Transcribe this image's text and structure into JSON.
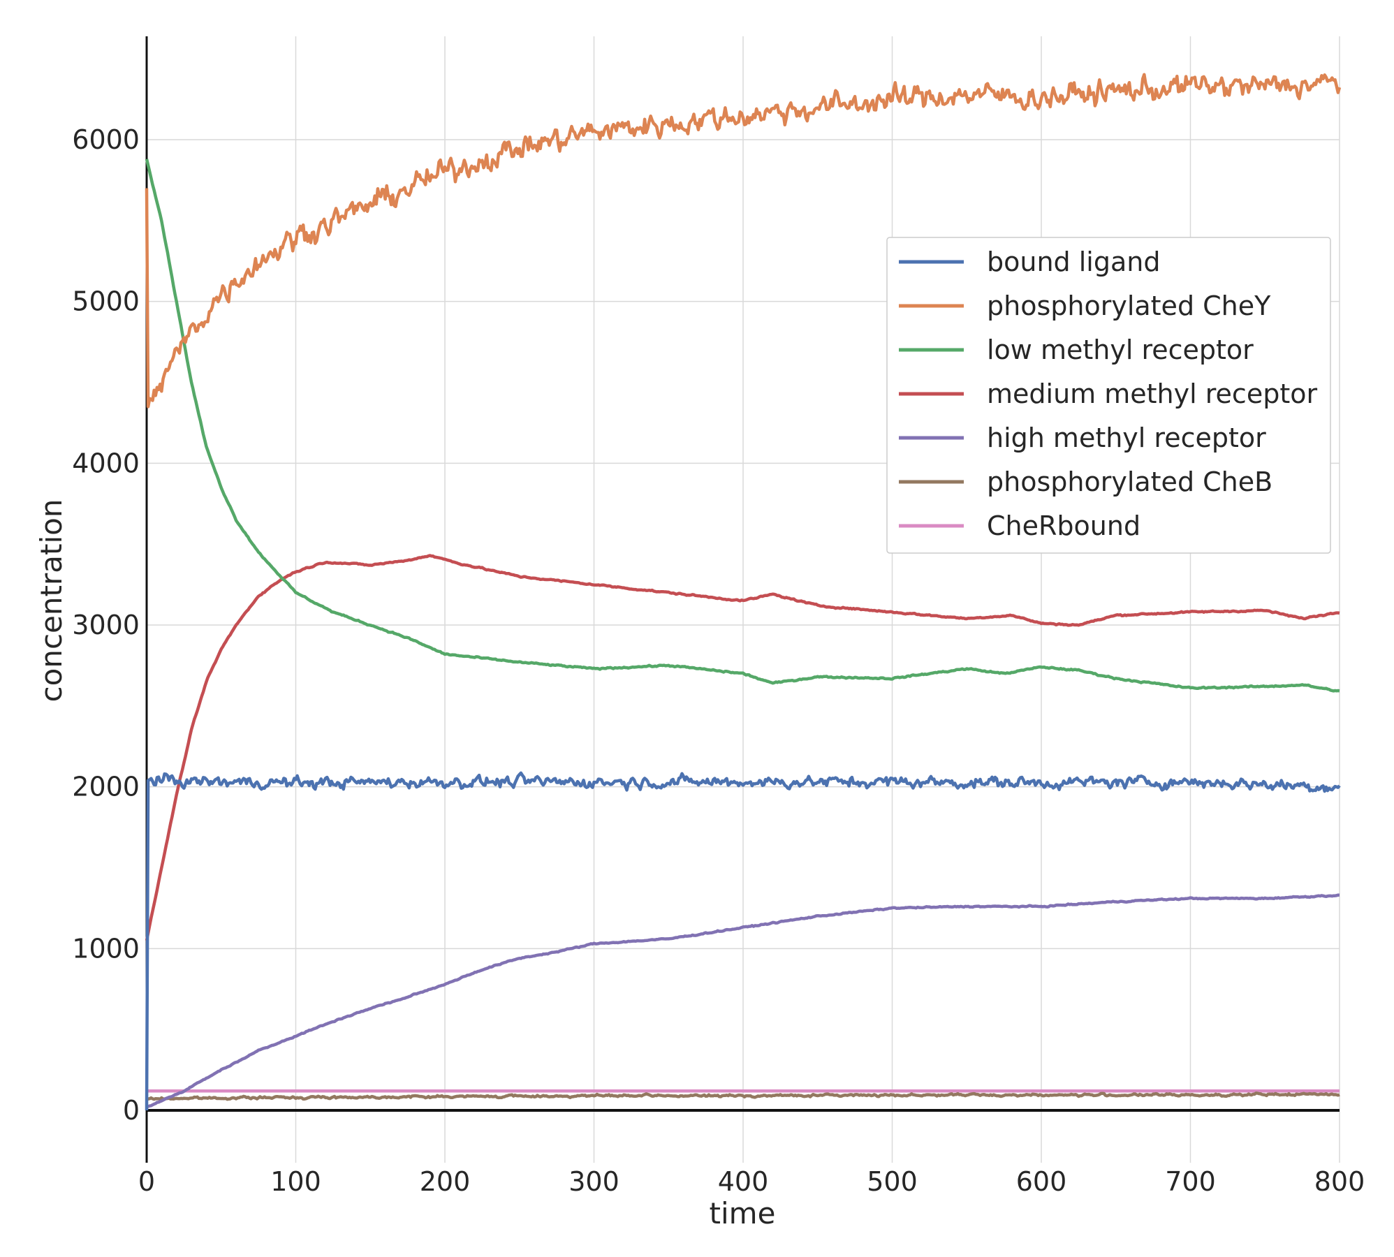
{
  "chart_data": {
    "type": "line",
    "title": "",
    "xlabel": "time",
    "ylabel": "concentration",
    "xlim": [
      0,
      800
    ],
    "ylim": [
      -300,
      6650
    ],
    "xticks": [
      "0",
      "100",
      "200",
      "300",
      "400",
      "500",
      "600",
      "700",
      "800"
    ],
    "yticks": [
      "0",
      "1000",
      "2000",
      "3000",
      "4000",
      "5000",
      "6000"
    ],
    "grid": true,
    "legend_position": "upper-right",
    "noise_seed": 7,
    "series": [
      {
        "name": "bound ligand",
        "color": "#4c72b0",
        "noise": 45,
        "points": [
          [
            0,
            0
          ],
          [
            1,
            2040
          ],
          [
            50,
            2030
          ],
          [
            100,
            2025
          ],
          [
            200,
            2030
          ],
          [
            300,
            2030
          ],
          [
            400,
            2030
          ],
          [
            500,
            2030
          ],
          [
            600,
            2025
          ],
          [
            700,
            2030
          ],
          [
            800,
            2000
          ]
        ]
      },
      {
        "name": "phosphorylated CheY",
        "color": "#dd8452",
        "noise": 95,
        "points": [
          [
            0,
            5700
          ],
          [
            1,
            4350
          ],
          [
            10,
            4500
          ],
          [
            25,
            4750
          ],
          [
            50,
            5050
          ],
          [
            75,
            5250
          ],
          [
            100,
            5400
          ],
          [
            150,
            5600
          ],
          [
            200,
            5800
          ],
          [
            250,
            5950
          ],
          [
            300,
            6050
          ],
          [
            350,
            6100
          ],
          [
            400,
            6150
          ],
          [
            450,
            6200
          ],
          [
            500,
            6250
          ],
          [
            550,
            6280
          ],
          [
            600,
            6260
          ],
          [
            650,
            6300
          ],
          [
            700,
            6330
          ],
          [
            750,
            6330
          ],
          [
            800,
            6350
          ]
        ]
      },
      {
        "name": "low methyl receptor",
        "color": "#55a868",
        "noise": 6,
        "points": [
          [
            0,
            5880
          ],
          [
            10,
            5500
          ],
          [
            20,
            5000
          ],
          [
            30,
            4500
          ],
          [
            40,
            4100
          ],
          [
            50,
            3850
          ],
          [
            60,
            3650
          ],
          [
            75,
            3450
          ],
          [
            100,
            3200
          ],
          [
            125,
            3080
          ],
          [
            150,
            3000
          ],
          [
            175,
            2920
          ],
          [
            200,
            2820
          ],
          [
            250,
            2770
          ],
          [
            300,
            2730
          ],
          [
            350,
            2750
          ],
          [
            400,
            2700
          ],
          [
            420,
            2640
          ],
          [
            450,
            2680
          ],
          [
            500,
            2670
          ],
          [
            550,
            2730
          ],
          [
            575,
            2700
          ],
          [
            600,
            2740
          ],
          [
            625,
            2720
          ],
          [
            650,
            2670
          ],
          [
            700,
            2610
          ],
          [
            750,
            2620
          ],
          [
            775,
            2630
          ],
          [
            800,
            2590
          ]
        ]
      },
      {
        "name": "medium methyl receptor",
        "color": "#c44e52",
        "noise": 6,
        "points": [
          [
            0,
            1050
          ],
          [
            10,
            1500
          ],
          [
            20,
            1950
          ],
          [
            30,
            2350
          ],
          [
            40,
            2650
          ],
          [
            50,
            2850
          ],
          [
            60,
            3000
          ],
          [
            75,
            3180
          ],
          [
            90,
            3280
          ],
          [
            100,
            3330
          ],
          [
            120,
            3390
          ],
          [
            150,
            3370
          ],
          [
            175,
            3400
          ],
          [
            190,
            3430
          ],
          [
            210,
            3380
          ],
          [
            250,
            3300
          ],
          [
            300,
            3250
          ],
          [
            350,
            3200
          ],
          [
            400,
            3150
          ],
          [
            420,
            3190
          ],
          [
            450,
            3120
          ],
          [
            500,
            3080
          ],
          [
            550,
            3040
          ],
          [
            580,
            3060
          ],
          [
            600,
            3010
          ],
          [
            625,
            3000
          ],
          [
            650,
            3060
          ],
          [
            700,
            3080
          ],
          [
            750,
            3090
          ],
          [
            775,
            3040
          ],
          [
            800,
            3080
          ]
        ]
      },
      {
        "name": "high methyl receptor",
        "color": "#8172b3",
        "noise": 5,
        "points": [
          [
            0,
            20
          ],
          [
            25,
            120
          ],
          [
            50,
            250
          ],
          [
            75,
            370
          ],
          [
            100,
            460
          ],
          [
            125,
            550
          ],
          [
            150,
            630
          ],
          [
            175,
            700
          ],
          [
            200,
            780
          ],
          [
            225,
            870
          ],
          [
            250,
            940
          ],
          [
            275,
            980
          ],
          [
            300,
            1030
          ],
          [
            350,
            1060
          ],
          [
            400,
            1130
          ],
          [
            450,
            1200
          ],
          [
            500,
            1250
          ],
          [
            550,
            1260
          ],
          [
            600,
            1260
          ],
          [
            650,
            1290
          ],
          [
            700,
            1310
          ],
          [
            750,
            1310
          ],
          [
            800,
            1330
          ]
        ]
      },
      {
        "name": "phosphorylated CheB",
        "color": "#937860",
        "noise": 9,
        "points": [
          [
            0,
            70
          ],
          [
            25,
            75
          ],
          [
            100,
            80
          ],
          [
            200,
            85
          ],
          [
            300,
            90
          ],
          [
            400,
            90
          ],
          [
            500,
            95
          ],
          [
            600,
            95
          ],
          [
            700,
            95
          ],
          [
            800,
            100
          ]
        ]
      },
      {
        "name": "CheRbound",
        "color": "#da8bc3",
        "noise": 0,
        "points": [
          [
            0,
            120
          ],
          [
            800,
            120
          ]
        ]
      }
    ]
  }
}
